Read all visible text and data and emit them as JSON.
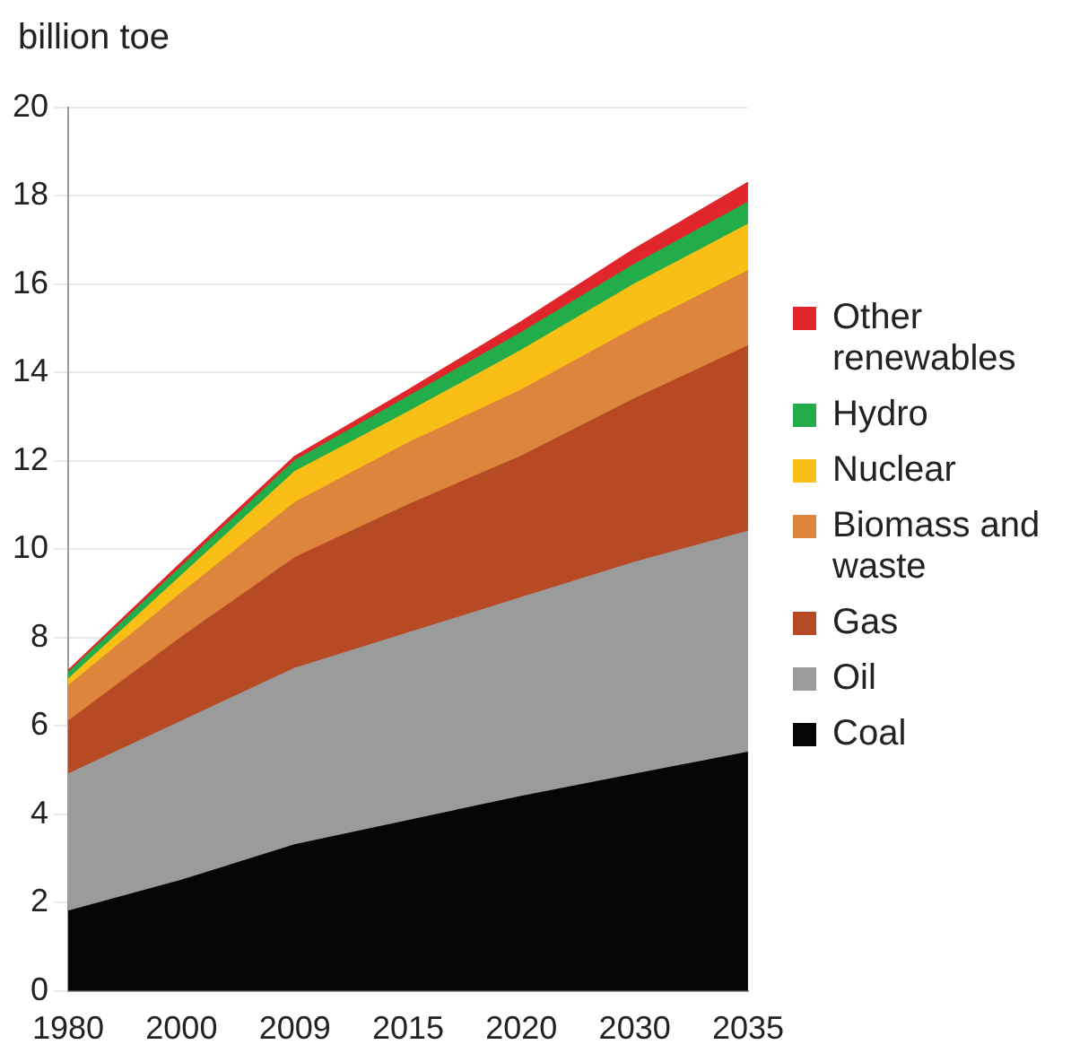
{
  "chart_data": {
    "type": "area",
    "stacked": true,
    "ylabel": "billion toe",
    "categories": [
      "1980",
      "2000",
      "2009",
      "2015",
      "2020",
      "2030",
      "2035"
    ],
    "series": [
      {
        "name": "Coal",
        "color": "#050505",
        "values": [
          1.8,
          2.5,
          3.3,
          3.85,
          4.4,
          4.9,
          5.4
        ]
      },
      {
        "name": "Oil",
        "color": "#9b9b9b",
        "values": [
          3.1,
          3.6,
          4.0,
          4.25,
          4.5,
          4.8,
          5.0
        ]
      },
      {
        "name": "Gas",
        "color": "#b54a25",
        "values": [
          1.2,
          1.9,
          2.5,
          2.9,
          3.2,
          3.7,
          4.2
        ]
      },
      {
        "name": "Biomass and waste",
        "color": "#dd853c",
        "values": [
          0.8,
          1.0,
          1.25,
          1.4,
          1.5,
          1.6,
          1.7
        ]
      },
      {
        "name": "Nuclear",
        "color": "#f9bf16",
        "values": [
          0.15,
          0.4,
          0.7,
          0.7,
          0.9,
          1.0,
          1.05
        ]
      },
      {
        "name": "Hydro",
        "color": "#23ad4a",
        "values": [
          0.15,
          0.2,
          0.25,
          0.35,
          0.4,
          0.45,
          0.5
        ]
      },
      {
        "name": "Other renewables",
        "color": "#e1262b",
        "values": [
          0.05,
          0.1,
          0.1,
          0.15,
          0.25,
          0.35,
          0.45
        ]
      }
    ],
    "ylim": [
      0,
      20
    ],
    "yticks": [
      0,
      2,
      4,
      6,
      8,
      10,
      12,
      14,
      16,
      18,
      20
    ],
    "grid": "y",
    "legend": "right"
  }
}
